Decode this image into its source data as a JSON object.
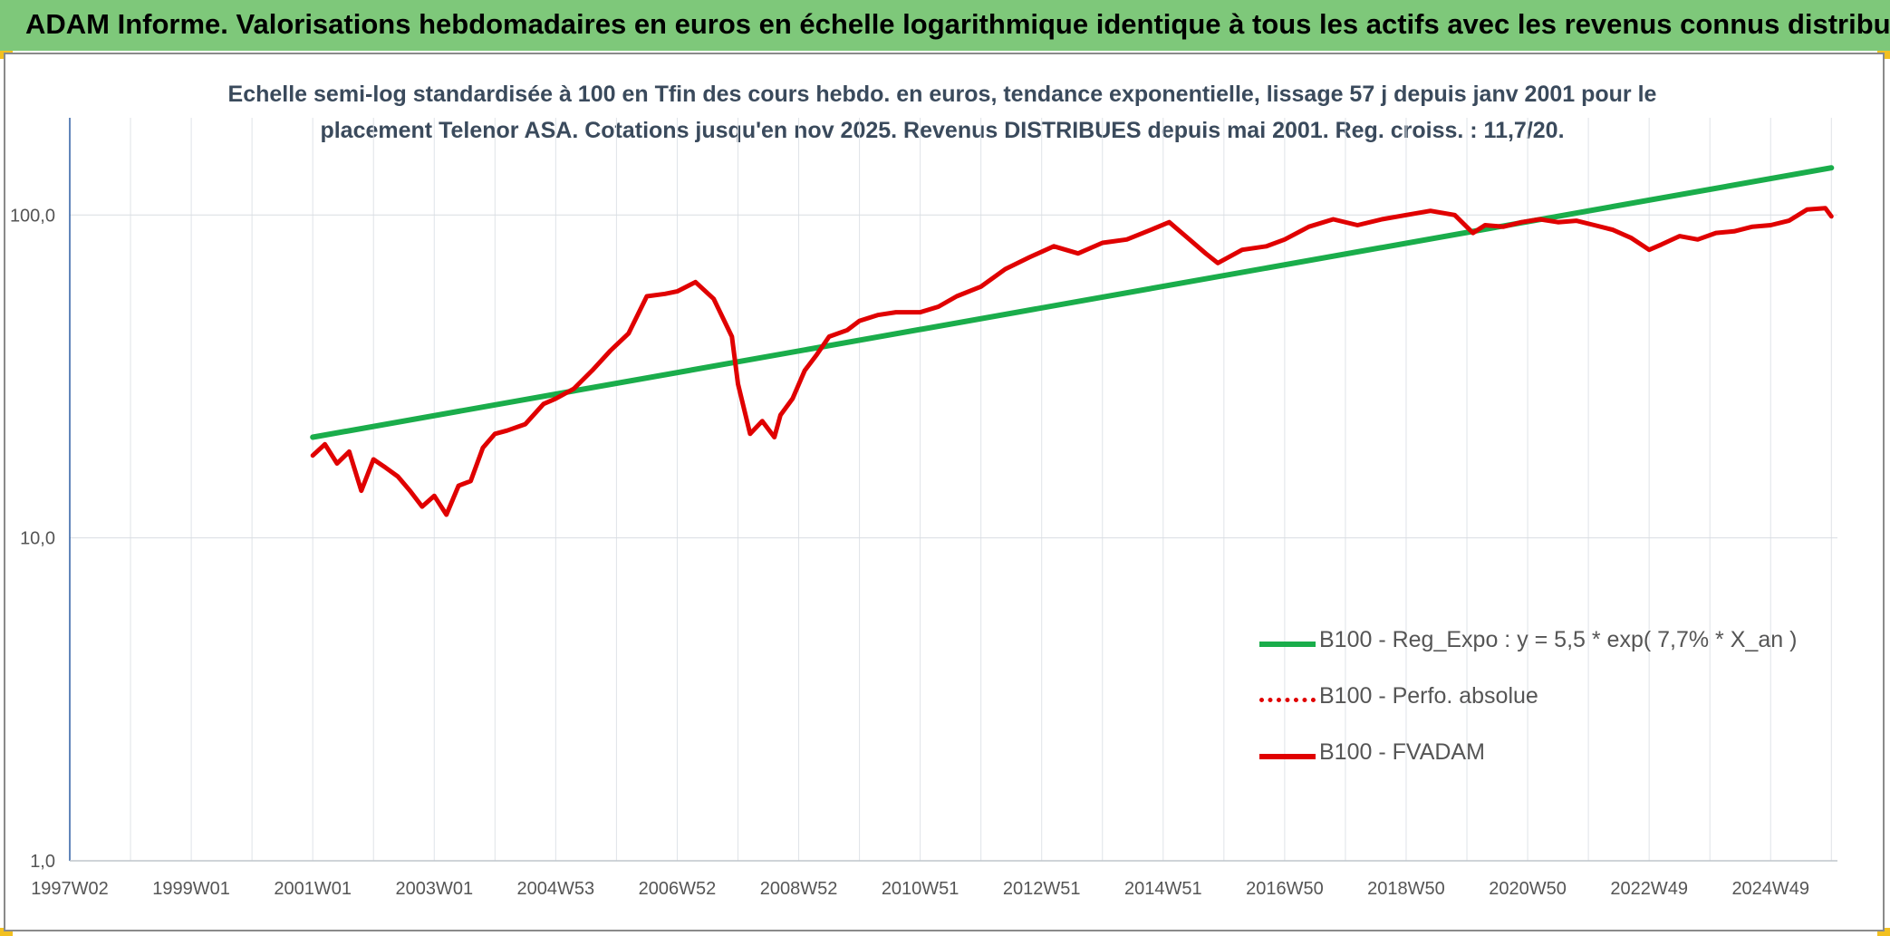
{
  "header": {
    "title": "ADAM Informe. Valorisations hebdomadaires en euros en échelle logarithmique identique à tous les actifs avec les revenus connus distribués"
  },
  "chart_data": {
    "type": "line",
    "title_line1": "Echelle semi-log standardisée à 100 en Tfin des cours hebdo. en euros, tendance exponentielle, lissage 57 j depuis janv 2001 pour le",
    "title_line2": "placement Telenor ASA. Cotations jusqu'en nov 2025. Revenus DISTRIBUES depuis mai 2001. Reg. croiss. : 11,7/20.",
    "y_scale": "log",
    "ylim": [
      1,
      200
    ],
    "y_ticks": [
      {
        "value": 1,
        "label": "1,0"
      },
      {
        "value": 10,
        "label": "10,0"
      },
      {
        "value": 100,
        "label": "100,0"
      }
    ],
    "xlim": [
      1997.0,
      2026.1
    ],
    "x_ticks": [
      {
        "value": 1997.0,
        "label": "1997W02"
      },
      {
        "value": 1999.0,
        "label": "1999W01"
      },
      {
        "value": 2001.0,
        "label": "2001W01"
      },
      {
        "value": 2003.0,
        "label": "2003W01"
      },
      {
        "value": 2005.0,
        "label": "2004W53"
      },
      {
        "value": 2007.0,
        "label": "2006W52"
      },
      {
        "value": 2009.0,
        "label": "2008W52"
      },
      {
        "value": 2011.0,
        "label": "2010W51"
      },
      {
        "value": 2013.0,
        "label": "2012W51"
      },
      {
        "value": 2015.0,
        "label": "2014W51"
      },
      {
        "value": 2017.0,
        "label": "2016W50"
      },
      {
        "value": 2019.0,
        "label": "2018W50"
      },
      {
        "value": 2021.0,
        "label": "2020W50"
      },
      {
        "value": 2023.0,
        "label": "2022W49"
      },
      {
        "value": 2025.0,
        "label": "2024W49"
      }
    ],
    "grid": true,
    "legend_position": "right",
    "legend": [
      {
        "key": "reg",
        "label": "B100 - Reg_Expo : y = 5,5 * exp( 7,7% *  X_an )",
        "color": "#1aad4b",
        "style": "solid"
      },
      {
        "key": "perfo",
        "label": "B100 - Perfo. absolue",
        "color": "#e00000",
        "style": "dotted"
      },
      {
        "key": "fvadam",
        "label": "B100 - FVADAM",
        "color": "#e00000",
        "style": "solid"
      }
    ],
    "series": [
      {
        "key": "reg",
        "x": [
          2001.0,
          2026.0
        ],
        "y": [
          20.5,
          140
        ]
      },
      {
        "key": "fvadam",
        "x": [
          2001.0,
          2001.2,
          2001.4,
          2001.6,
          2001.8,
          2002.0,
          2002.2,
          2002.4,
          2002.6,
          2002.8,
          2003.0,
          2003.2,
          2003.4,
          2003.6,
          2003.8,
          2004.0,
          2004.2,
          2004.5,
          2004.8,
          2005.0,
          2005.3,
          2005.6,
          2005.9,
          2006.2,
          2006.5,
          2006.8,
          2007.0,
          2007.3,
          2007.6,
          2007.9,
          2008.0,
          2008.2,
          2008.4,
          2008.6,
          2008.7,
          2008.9,
          2009.1,
          2009.3,
          2009.5,
          2009.8,
          2010.0,
          2010.3,
          2010.6,
          2011.0,
          2011.3,
          2011.6,
          2012.0,
          2012.4,
          2012.8,
          2013.2,
          2013.6,
          2014.0,
          2014.4,
          2014.8,
          2015.1,
          2015.4,
          2015.7,
          2015.9,
          2016.3,
          2016.7,
          2017.0,
          2017.4,
          2017.8,
          2018.2,
          2018.6,
          2019.0,
          2019.4,
          2019.8,
          2020.1,
          2020.3,
          2020.6,
          2020.9,
          2021.2,
          2021.5,
          2021.8,
          2022.1,
          2022.4,
          2022.7,
          2023.0,
          2023.2,
          2023.5,
          2023.8,
          2024.1,
          2024.4,
          2024.7,
          2025.0,
          2025.3,
          2025.6,
          2025.9,
          2026.0
        ],
        "y": [
          18,
          19.5,
          17,
          18.5,
          14,
          17.5,
          16.5,
          15.5,
          14,
          12.5,
          13.5,
          11.8,
          14.5,
          15,
          19,
          21,
          21.5,
          22.5,
          26,
          27,
          29,
          33,
          38,
          43,
          56,
          57,
          58,
          62,
          55,
          42,
          30,
          21,
          23,
          20.5,
          24,
          27,
          33,
          37,
          42,
          44,
          47,
          49,
          50,
          50,
          52,
          56,
          60,
          68,
          74,
          80,
          76,
          82,
          84,
          90,
          95,
          85,
          76,
          71,
          78,
          80,
          84,
          92,
          97,
          93,
          97,
          100,
          103,
          100,
          88,
          93,
          92,
          95,
          97,
          95,
          96,
          93,
          90,
          85,
          78,
          81,
          86,
          84,
          88,
          89,
          92,
          93,
          96,
          104,
          105,
          99
        ]
      }
    ]
  }
}
